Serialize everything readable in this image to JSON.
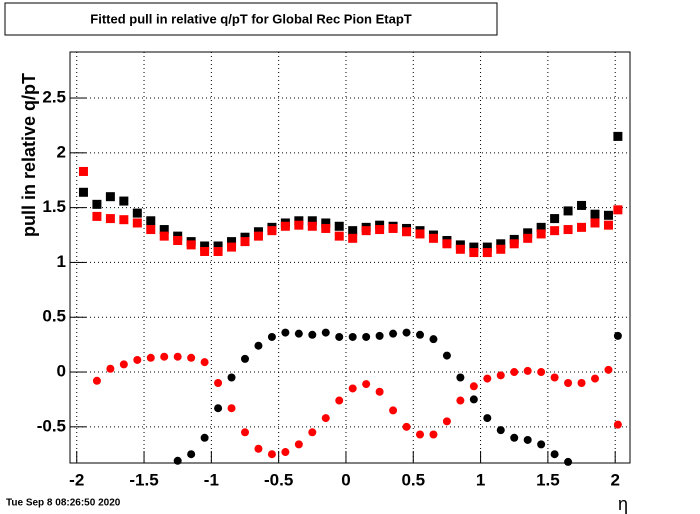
{
  "chart_data": {
    "type": "scatter",
    "title": "Fitted pull in relative q/pT for Global Rec Pion EtapT",
    "y_label": "pull in relative q/pT",
    "x_label": "η",
    "footer": "Tue Sep  8 08:26:50 2020",
    "grid": true,
    "xlim": [
      -2.05,
      2.11
    ],
    "ylim": [
      -0.83,
      2.92
    ],
    "xticks": [
      -2,
      -1.5,
      -1,
      -0.5,
      0,
      0.5,
      1,
      1.5,
      2
    ],
    "yticks": [
      -0.5,
      0,
      0.5,
      1,
      1.5,
      2,
      2.5
    ],
    "x": [
      -1.95,
      -1.85,
      -1.75,
      -1.65,
      -1.55,
      -1.45,
      -1.35,
      -1.25,
      -1.15,
      -1.05,
      -0.95,
      -0.85,
      -0.75,
      -0.65,
      -0.55,
      -0.45,
      -0.35,
      -0.25,
      -0.15,
      -0.05,
      0.05,
      0.15,
      0.25,
      0.35,
      0.45,
      0.55,
      0.65,
      0.75,
      0.85,
      0.95,
      1.05,
      1.15,
      1.25,
      1.35,
      1.45,
      1.55,
      1.65,
      1.75,
      1.85,
      1.95,
      2.02
    ],
    "series": [
      {
        "color": "#000000",
        "marker": "square",
        "values": [
          1.64,
          1.53,
          1.6,
          1.56,
          1.45,
          1.38,
          1.3,
          1.24,
          1.19,
          1.15,
          1.15,
          1.19,
          1.23,
          1.28,
          1.32,
          1.36,
          1.38,
          1.38,
          1.36,
          1.33,
          1.29,
          1.32,
          1.34,
          1.33,
          1.31,
          1.29,
          1.25,
          1.2,
          1.16,
          1.14,
          1.14,
          1.17,
          1.21,
          1.27,
          1.32,
          1.4,
          1.47,
          1.52,
          1.44,
          1.43,
          2.15
        ]
      },
      {
        "color": "#ff0000",
        "marker": "square",
        "values": [
          1.83,
          1.42,
          1.4,
          1.39,
          1.36,
          1.3,
          1.24,
          1.2,
          1.16,
          1.1,
          1.1,
          1.14,
          1.19,
          1.24,
          1.29,
          1.33,
          1.34,
          1.33,
          1.31,
          1.24,
          1.22,
          1.29,
          1.3,
          1.31,
          1.28,
          1.26,
          1.22,
          1.17,
          1.12,
          1.09,
          1.09,
          1.12,
          1.17,
          1.22,
          1.26,
          1.29,
          1.3,
          1.32,
          1.36,
          1.34,
          1.48
        ]
      },
      {
        "color": "#000000",
        "marker": "circle",
        "values": [
          null,
          null,
          null,
          null,
          null,
          null,
          null,
          -0.81,
          -0.75,
          -0.6,
          -0.33,
          -0.05,
          0.12,
          0.24,
          0.32,
          0.36,
          0.35,
          0.34,
          0.36,
          0.32,
          0.32,
          0.32,
          0.33,
          0.35,
          0.36,
          0.34,
          0.3,
          0.15,
          -0.05,
          -0.25,
          -0.42,
          -0.53,
          -0.6,
          -0.62,
          -0.66,
          -0.75,
          -0.82,
          null,
          null,
          null,
          0.33
        ]
      },
      {
        "color": "#ff0000",
        "marker": "circle",
        "values": [
          null,
          -0.08,
          0.03,
          0.07,
          0.11,
          0.13,
          0.14,
          0.14,
          0.13,
          0.09,
          -0.1,
          -0.33,
          -0.55,
          -0.7,
          -0.75,
          -0.73,
          -0.66,
          -0.55,
          -0.42,
          -0.26,
          -0.15,
          -0.11,
          -0.18,
          -0.35,
          -0.5,
          -0.57,
          -0.57,
          -0.45,
          -0.26,
          -0.13,
          -0.06,
          -0.03,
          0.0,
          0.01,
          0.0,
          -0.05,
          -0.1,
          -0.1,
          -0.06,
          0.02,
          -0.48
        ]
      }
    ]
  }
}
